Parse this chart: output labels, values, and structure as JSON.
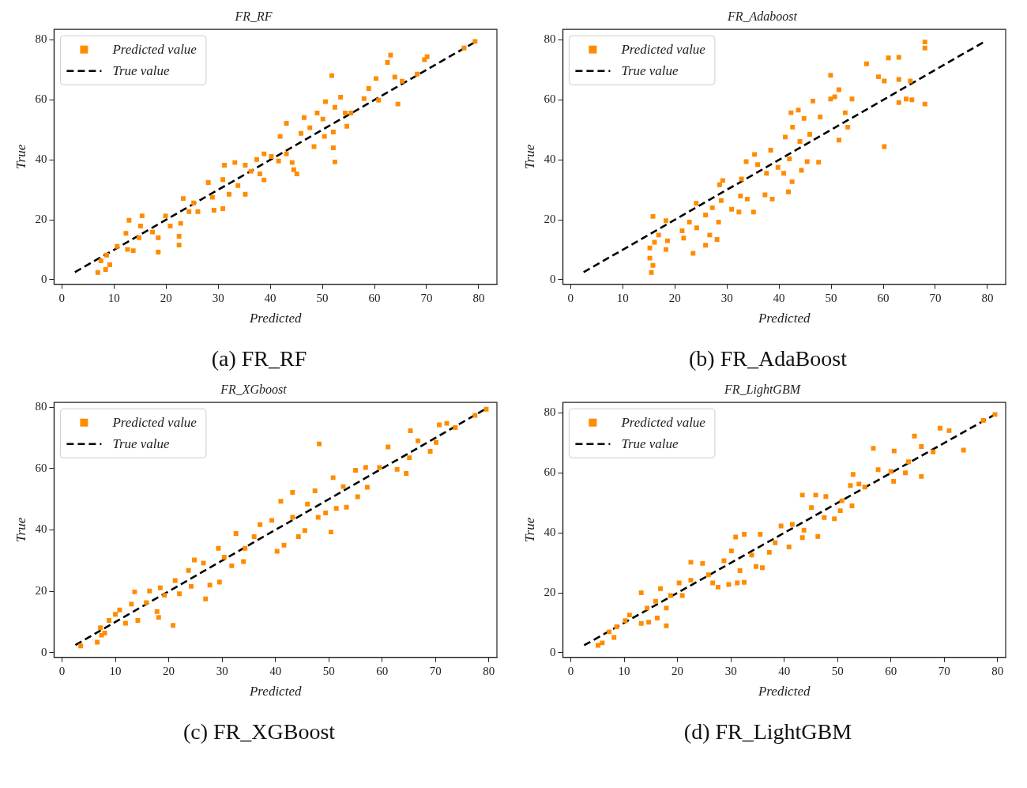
{
  "chart_data": [
    {
      "type": "scatter",
      "title": "FR_RF",
      "xlabel": "Predicted",
      "ylabel": "True",
      "annotations": [
        "(a) FR_RF"
      ],
      "xlim": [
        -1.5,
        83.5
      ],
      "ylim": [
        -1.5,
        83.5
      ],
      "xticks": [
        0,
        10,
        20,
        30,
        40,
        50,
        60,
        70,
        80
      ],
      "yticks": [
        0,
        20,
        40,
        60,
        80
      ],
      "legend": "top left",
      "marker": "square",
      "series": [
        {
          "name": "Predicted value",
          "color": "#ff8c00",
          "x": [
            6.9,
            8.4,
            9.2,
            7.5,
            8.6,
            10.6,
            12.6,
            13.7,
            12.3,
            12.9,
            15.4,
            15.1,
            14.8,
            18.5,
            18.5,
            17.4,
            19.9,
            20.8,
            22.5,
            22.5,
            22.8,
            23.3,
            24.4,
            26.1,
            25.3,
            28.1,
            29.2,
            28.9,
            30.9,
            30.9,
            31.2,
            33.2,
            32.1,
            33.8,
            35.2,
            35.2,
            36.3,
            37.4,
            38.8,
            38.8,
            38.0,
            40.2,
            41.6,
            43.1,
            41.9,
            43.1,
            44.2,
            44.5,
            45.1,
            45.9,
            46.5,
            47.6,
            48.4,
            49.0,
            50.1,
            50.4,
            50.6,
            51.8,
            52.1,
            52.1,
            52.4,
            52.4,
            53.5,
            54.4,
            54.7,
            55.5,
            58.0,
            58.9,
            60.3,
            60.8,
            62.5,
            63.1,
            63.9,
            64.5,
            65.3,
            68.2,
            69.6,
            70.1,
            77.2,
            79.3
          ],
          "values": [
            2.4,
            3.4,
            5.0,
            6.3,
            8.2,
            11.1,
            10.1,
            9.7,
            15.5,
            19.8,
            21.3,
            17.9,
            14.0,
            9.2,
            14.0,
            15.9,
            21.3,
            17.9,
            14.5,
            11.6,
            18.8,
            27.1,
            22.7,
            22.7,
            25.6,
            32.4,
            23.2,
            27.5,
            23.7,
            33.4,
            38.2,
            39.1,
            28.5,
            31.4,
            28.5,
            38.2,
            36.2,
            40.1,
            42.0,
            33.3,
            35.3,
            41.1,
            39.6,
            42.0,
            47.8,
            52.2,
            39.1,
            36.7,
            35.3,
            48.8,
            54.1,
            50.7,
            44.4,
            55.6,
            53.6,
            47.8,
            59.4,
            68.1,
            49.3,
            44.0,
            39.3,
            57.5,
            60.9,
            55.6,
            51.2,
            55.6,
            60.4,
            63.8,
            67.1,
            59.9,
            72.5,
            74.9,
            67.6,
            58.6,
            66.2,
            68.6,
            73.4,
            74.4,
            77.3,
            79.5
          ]
        },
        {
          "name": "True value",
          "type": "line",
          "color": "#000000",
          "line_style": "dashed",
          "marker": "none",
          "x": [
            2.5,
            79.5
          ],
          "values": [
            2.5,
            79.5
          ]
        }
      ]
    },
    {
      "type": "scatter",
      "title": "FR_Adaboost",
      "xlabel": "Predicted",
      "ylabel": "True",
      "annotations": [
        "(b) FR_AdaBoost"
      ],
      "xlim": [
        -1.5,
        83.5
      ],
      "ylim": [
        -1.5,
        83.5
      ],
      "xticks": [
        0,
        10,
        20,
        30,
        40,
        50,
        60,
        70,
        80
      ],
      "yticks": [
        0,
        20,
        40,
        60,
        80
      ],
      "legend": "top left",
      "marker": "square",
      "series": [
        {
          "name": "Predicted value",
          "color": "#ff8c00",
          "x": [
            15.5,
            15.8,
            15.2,
            15.2,
            16.1,
            16.9,
            15.8,
            18.3,
            18.6,
            18.3,
            21.4,
            21.7,
            22.8,
            23.5,
            24.2,
            24.1,
            25.9,
            25.9,
            26.7,
            27.2,
            28.1,
            28.4,
            28.6,
            28.9,
            29.2,
            30.9,
            32.3,
            32.6,
            32.8,
            33.7,
            33.9,
            35.3,
            35.1,
            35.9,
            37.3,
            37.6,
            38.4,
            38.7,
            39.8,
            40.9,
            41.2,
            41.8,
            42.0,
            42.3,
            42.5,
            42.6,
            43.7,
            44.0,
            44.3,
            44.8,
            45.4,
            45.9,
            46.5,
            47.6,
            47.9,
            49.9,
            49.9,
            50.7,
            51.5,
            51.5,
            52.7,
            53.2,
            54.0,
            56.8,
            59.1,
            60.2,
            60.2,
            61.0,
            63.0,
            63.0,
            63.0,
            64.4,
            65.2,
            65.5,
            68.0,
            68.0,
            68.0
          ],
          "values": [
            2.4,
            4.8,
            7.2,
            10.6,
            12.5,
            14.9,
            21.1,
            10.1,
            13.0,
            19.7,
            16.3,
            13.9,
            19.2,
            8.8,
            17.3,
            25.5,
            11.5,
            21.6,
            14.9,
            24.0,
            13.4,
            19.2,
            31.7,
            26.4,
            33.1,
            23.5,
            22.6,
            27.9,
            33.6,
            39.4,
            26.9,
            41.8,
            22.6,
            38.4,
            28.3,
            35.5,
            43.2,
            26.9,
            37.5,
            35.5,
            47.6,
            29.3,
            40.3,
            55.7,
            32.7,
            50.9,
            56.6,
            46.1,
            36.5,
            53.8,
            39.4,
            48.5,
            59.6,
            39.2,
            54.3,
            68.2,
            60.3,
            61.0,
            63.4,
            46.6,
            55.7,
            50.9,
            60.3,
            72.0,
            67.7,
            44.4,
            66.3,
            74.0,
            74.2,
            66.8,
            59.1,
            60.3,
            66.3,
            60.0,
            79.3,
            77.3,
            58.6
          ]
        },
        {
          "name": "True value",
          "type": "line",
          "color": "#000000",
          "line_style": "dashed",
          "marker": "none",
          "x": [
            2.5,
            79.5
          ],
          "values": [
            2.5,
            79.5
          ]
        }
      ]
    },
    {
      "type": "scatter",
      "title": "FR_XGboost",
      "xlabel": "Predicted",
      "ylabel": "True",
      "annotations": [
        "(c) FR_XGBoost"
      ],
      "xlim": [
        -1.5,
        81.5
      ],
      "ylim": [
        -1.5,
        81.5
      ],
      "xticks": [
        0,
        10,
        20,
        30,
        40,
        50,
        60,
        70,
        80
      ],
      "yticks": [
        0,
        20,
        40,
        60,
        80
      ],
      "legend": "top left",
      "marker": "square",
      "series": [
        {
          "name": "Predicted value",
          "color": "#ff8c00",
          "x": [
            3.5,
            6.6,
            7.4,
            8.0,
            7.2,
            8.8,
            10.0,
            11.9,
            10.8,
            13.0,
            13.6,
            14.2,
            15.8,
            16.4,
            17.8,
            18.1,
            18.4,
            19.2,
            20.8,
            21.2,
            22.0,
            23.7,
            24.2,
            24.8,
            26.5,
            26.9,
            27.7,
            29.3,
            29.5,
            30.4,
            31.8,
            32.6,
            34.0,
            34.3,
            36.0,
            37.1,
            39.3,
            40.3,
            41.0,
            41.6,
            43.2,
            43.2,
            44.3,
            45.5,
            46.0,
            47.4,
            48.0,
            48.2,
            49.4,
            50.4,
            50.8,
            51.4,
            52.7,
            53.3,
            55.0,
            55.4,
            57.2,
            56.9,
            59.5,
            61.1,
            62.8,
            64.5,
            65.3,
            65.1,
            66.7,
            69.0,
            70.1,
            70.7,
            72.1,
            73.7,
            77.4,
            79.5
          ],
          "values": [
            2.2,
            3.4,
            5.7,
            6.4,
            8.1,
            10.5,
            12.5,
            9.6,
            13.9,
            15.8,
            19.8,
            10.5,
            16.3,
            20.1,
            13.4,
            11.5,
            21.1,
            18.7,
            8.9,
            23.5,
            19.2,
            26.8,
            21.6,
            30.2,
            29.2,
            17.5,
            22.0,
            34.0,
            23.0,
            31.1,
            28.3,
            38.8,
            29.7,
            34.0,
            37.8,
            41.7,
            43.1,
            33.0,
            49.3,
            35.0,
            52.2,
            44.1,
            37.8,
            39.8,
            48.4,
            52.7,
            44.1,
            68.0,
            45.5,
            39.3,
            57.0,
            47.0,
            54.1,
            47.4,
            59.4,
            50.8,
            53.9,
            60.3,
            60.3,
            67.0,
            59.7,
            58.4,
            72.3,
            63.5,
            69.0,
            65.6,
            68.5,
            74.2,
            74.7,
            73.3,
            77.3,
            79.3
          ]
        },
        {
          "name": "True value",
          "type": "line",
          "color": "#000000",
          "line_style": "dashed",
          "marker": "none",
          "x": [
            2.5,
            79.5
          ],
          "values": [
            2.5,
            79.5
          ]
        }
      ]
    },
    {
      "type": "scatter",
      "title": "FR_LightGBM",
      "xlabel": "Predicted",
      "ylabel": "True",
      "annotations": [
        "(d) FR_LightGBM"
      ],
      "xlim": [
        -1.5,
        81.5
      ],
      "ylim": [
        -1.5,
        83.5
      ],
      "xticks": [
        0,
        10,
        20,
        30,
        40,
        50,
        60,
        70,
        80
      ],
      "yticks": [
        0,
        20,
        40,
        60,
        80
      ],
      "legend": "top left",
      "marker": "square",
      "series": [
        {
          "name": "Predicted value",
          "color": "#ff8c00",
          "x": [
            5.1,
            5.9,
            8.1,
            7.2,
            8.6,
            10.2,
            11.0,
            13.2,
            14.6,
            13.2,
            14.3,
            16.2,
            15.9,
            16.8,
            17.9,
            17.9,
            18.7,
            20.3,
            20.9,
            22.5,
            22.5,
            24.7,
            25.8,
            26.6,
            27.6,
            28.7,
            29.6,
            30.1,
            30.9,
            31.2,
            32.5,
            31.7,
            32.5,
            33.9,
            34.7,
            35.5,
            35.9,
            37.2,
            38.3,
            39.4,
            40.9,
            41.5,
            43.4,
            43.4,
            43.7,
            45.1,
            45.9,
            46.3,
            47.5,
            47.8,
            49.4,
            50.5,
            50.8,
            52.7,
            52.4,
            52.9,
            54.0,
            55.1,
            56.7,
            57.6,
            60.0,
            60.5,
            60.6,
            62.7,
            63.3,
            64.4,
            65.7,
            65.7,
            67.9,
            69.2,
            70.9,
            73.6,
            77.3,
            79.5
          ],
          "values": [
            2.5,
            3.3,
            5.1,
            7.0,
            8.7,
            10.7,
            12.6,
            9.8,
            10.2,
            20.0,
            14.9,
            11.6,
            17.2,
            21.4,
            9.0,
            14.9,
            19.1,
            23.3,
            19.1,
            30.2,
            24.2,
            29.8,
            26.0,
            23.3,
            21.9,
            30.7,
            22.8,
            34.0,
            38.6,
            23.3,
            23.5,
            27.4,
            39.5,
            32.6,
            28.8,
            39.5,
            28.4,
            33.5,
            36.7,
            42.3,
            35.3,
            42.8,
            52.6,
            38.4,
            40.9,
            48.4,
            52.6,
            38.8,
            45.1,
            52.1,
            44.7,
            47.4,
            50.7,
            49.0,
            55.8,
            59.5,
            56.3,
            55.3,
            68.2,
            61.1,
            60.5,
            57.2,
            67.3,
            60.0,
            63.7,
            72.3,
            68.8,
            58.8,
            67.0,
            74.9,
            74.1,
            67.6,
            77.5,
            79.5
          ]
        },
        {
          "name": "True value",
          "type": "line",
          "color": "#000000",
          "line_style": "dashed",
          "marker": "none",
          "x": [
            2.5,
            79.5
          ],
          "values": [
            2.5,
            79.5
          ]
        }
      ]
    }
  ]
}
